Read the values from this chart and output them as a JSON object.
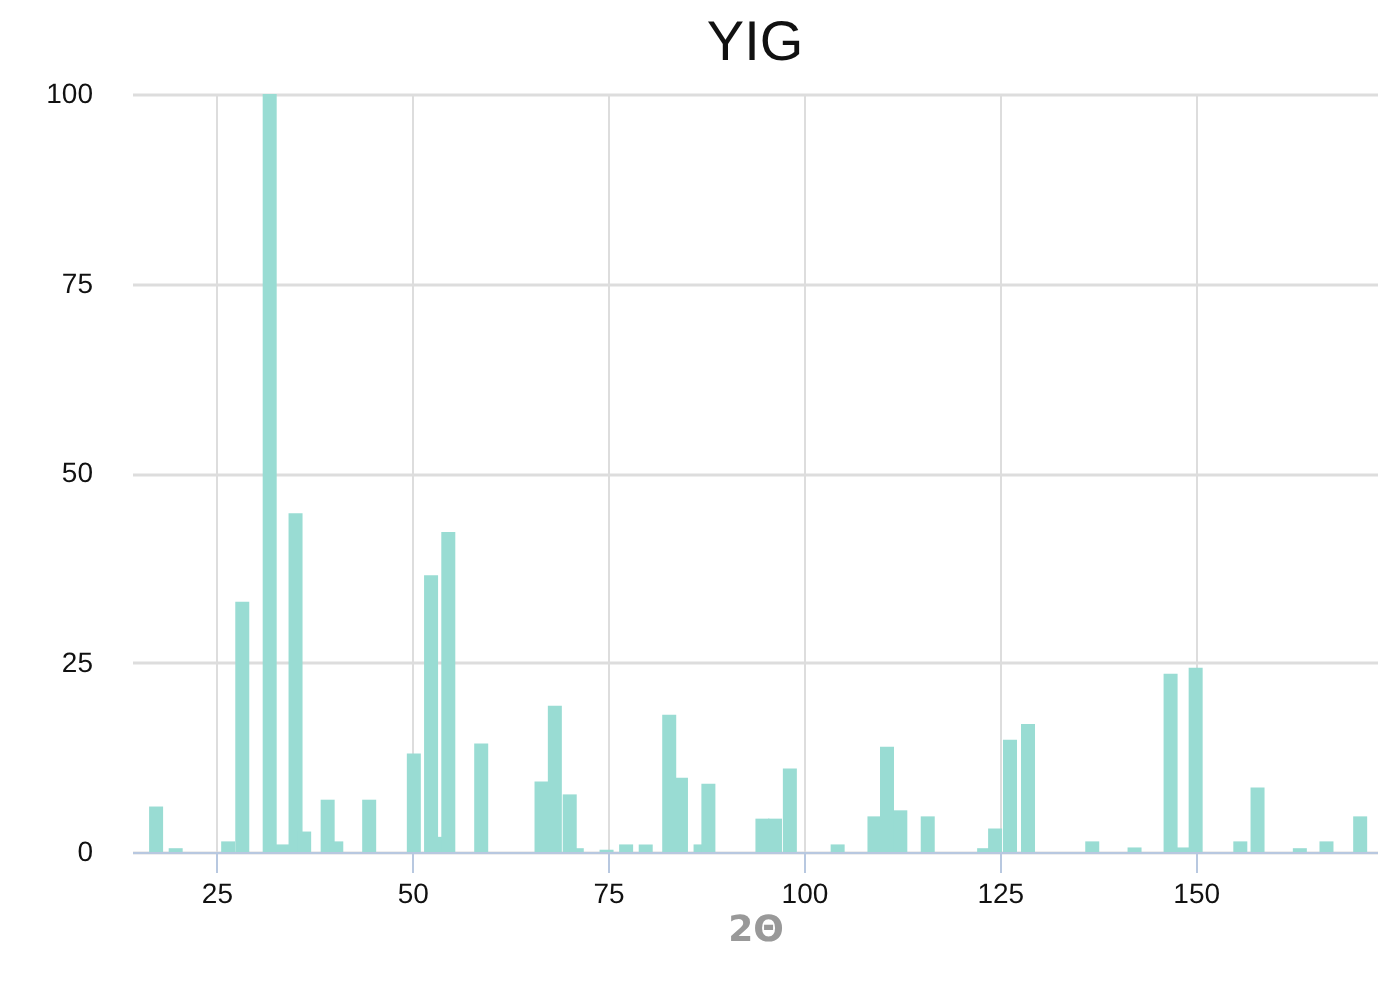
{
  "chart_data": {
    "type": "bar",
    "title": "YIG",
    "xlabel": "2Θ",
    "color": "#99dcd3",
    "x": [
      17.3,
      19.8,
      26.5,
      28.3,
      31.8,
      33.4,
      35.1,
      36.2,
      39.2,
      40.3,
      44.5,
      50.2,
      52.4,
      53.3,
      54.6,
      58.8,
      66.5,
      68.2,
      70.1,
      71,
      74.8,
      77.3,
      79.8,
      82.8,
      84.3,
      86.8,
      87.8,
      94.7,
      96.3,
      98.2,
      104.3,
      109,
      110.6,
      112.3,
      115.8,
      123,
      124.4,
      126.3,
      128.6,
      136.8,
      142.2,
      146.8,
      148.4,
      150,
      155.7,
      157.9,
      163.3,
      166.7,
      171
    ],
    "values": [
      6,
      0.5,
      1.4,
      33,
      100,
      1,
      44.7,
      2.7,
      6.9,
      1.4,
      6.9,
      13,
      36.5,
      2,
      42.2,
      14.3,
      9.3,
      19.3,
      7.6,
      0.5,
      0.3,
      1,
      1,
      18.1,
      9.8,
      1,
      9,
      4.4,
      4.4,
      11,
      1,
      4.7,
      13.9,
      5.5,
      4.7,
      0.5,
      3.1,
      14.8,
      16.9,
      1.4,
      0.6,
      23.5,
      0.6,
      24.3,
      1.4,
      8.5,
      0.5,
      1.4,
      4.7
    ],
    "xlim": [
      15.5,
      172
    ],
    "xticks": [
      25,
      50,
      75,
      100,
      125,
      150
    ],
    "ylim": [
      0,
      100
    ],
    "yticks": [
      0,
      25,
      50,
      75,
      100
    ],
    "grid": true
  }
}
